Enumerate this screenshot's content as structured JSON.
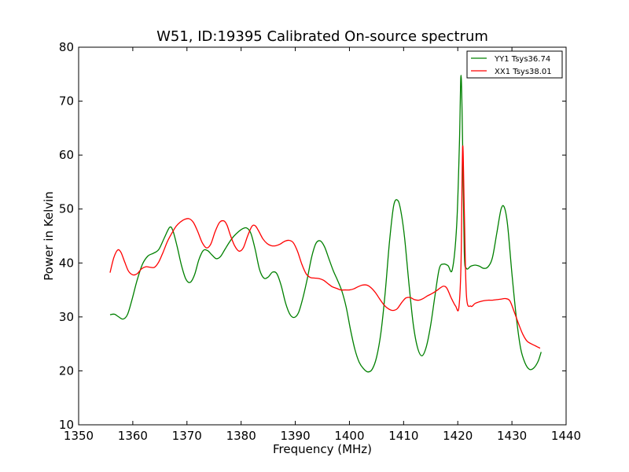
{
  "chart_data": {
    "type": "line",
    "title": "W51, ID:19395 Calibrated On-source spectrum",
    "xlabel": "Frequency (MHz)",
    "ylabel": "Power in Kelvin",
    "xlim": [
      1350,
      1440
    ],
    "ylim": [
      10,
      80
    ],
    "xticks": [
      1350,
      1360,
      1370,
      1380,
      1390,
      1400,
      1410,
      1420,
      1430,
      1440
    ],
    "yticks": [
      10,
      20,
      30,
      40,
      50,
      60,
      70,
      80
    ],
    "grid": false,
    "legend_position": "top-right",
    "series": [
      {
        "name": "YY1 Tsys36.74",
        "color": "#008000",
        "x": [
          1355.8,
          1356.6,
          1357.4,
          1358.2,
          1359.0,
          1359.8,
          1360.8,
          1361.8,
          1362.8,
          1363.8,
          1364.8,
          1365.8,
          1366.8,
          1367.4,
          1368.2,
          1369.0,
          1369.8,
          1370.6,
          1371.4,
          1372.2,
          1373.0,
          1373.8,
          1374.6,
          1375.4,
          1376.2,
          1377.0,
          1377.8,
          1378.6,
          1379.4,
          1380.2,
          1381.0,
          1381.8,
          1382.6,
          1383.4,
          1384.2,
          1385.0,
          1385.8,
          1386.6,
          1387.4,
          1388.2,
          1389.0,
          1389.8,
          1390.6,
          1391.4,
          1392.2,
          1393.0,
          1393.8,
          1394.6,
          1395.4,
          1396.2,
          1397.0,
          1397.8,
          1398.6,
          1399.4,
          1400.2,
          1401.0,
          1401.8,
          1402.6,
          1403.4,
          1404.2,
          1405.0,
          1405.8,
          1406.6,
          1407.4,
          1408.2,
          1409.0,
          1409.6,
          1410.2,
          1411.0,
          1411.8,
          1412.6,
          1413.4,
          1414.2,
          1415.0,
          1415.8,
          1416.6,
          1417.4,
          1418.2,
          1419.0,
          1419.8,
          1420.3,
          1420.6,
          1420.9,
          1421.2,
          1421.6,
          1422.4,
          1423.2,
          1424.0,
          1424.8,
          1425.6,
          1426.4,
          1427.2,
          1428.0,
          1428.6,
          1429.2,
          1430.0,
          1430.8,
          1431.6,
          1432.4,
          1433.2,
          1434.0,
          1434.8,
          1435.4
        ],
        "values": [
          30.4,
          30.5,
          30.0,
          29.6,
          30.4,
          33.0,
          36.8,
          39.8,
          41.3,
          41.8,
          42.5,
          44.6,
          46.6,
          46.0,
          43.0,
          39.5,
          37.0,
          36.4,
          37.8,
          40.6,
          42.3,
          42.3,
          41.5,
          40.8,
          41.2,
          42.5,
          43.8,
          44.9,
          45.7,
          46.3,
          46.5,
          45.5,
          42.5,
          38.8,
          37.2,
          37.4,
          38.3,
          38.0,
          35.8,
          32.6,
          30.5,
          29.9,
          30.8,
          33.5,
          37.0,
          41.0,
          43.6,
          44.1,
          43.0,
          40.8,
          38.6,
          36.8,
          34.8,
          31.8,
          27.6,
          24.0,
          21.6,
          20.4,
          19.8,
          20.3,
          22.5,
          27.0,
          34.5,
          44.0,
          50.8,
          51.5,
          49.0,
          44.5,
          36.0,
          28.5,
          24.2,
          22.8,
          24.5,
          28.5,
          34.0,
          39.0,
          39.8,
          39.5,
          38.8,
          47.0,
          62.0,
          74.8,
          62.0,
          42.0,
          39.0,
          39.4,
          39.6,
          39.4,
          39.0,
          39.3,
          41.0,
          45.5,
          50.0,
          50.3,
          47.0,
          38.0,
          30.0,
          24.2,
          21.5,
          20.3,
          20.5,
          21.7,
          23.5
        ]
      },
      {
        "name": "XX1 Tsys38.01",
        "color": "#ff0000",
        "x": [
          1355.8,
          1356.5,
          1357.2,
          1357.8,
          1358.5,
          1359.2,
          1360.0,
          1360.8,
          1361.6,
          1362.4,
          1363.2,
          1364.0,
          1364.8,
          1365.6,
          1366.4,
          1367.2,
          1368.0,
          1368.8,
          1369.6,
          1370.4,
          1371.2,
          1372.0,
          1372.8,
          1373.6,
          1374.4,
          1375.2,
          1376.0,
          1376.8,
          1377.4,
          1378.0,
          1378.8,
          1379.6,
          1380.4,
          1381.2,
          1382.0,
          1382.6,
          1383.2,
          1384.0,
          1384.8,
          1385.6,
          1386.4,
          1387.2,
          1388.0,
          1388.8,
          1389.6,
          1390.4,
          1391.2,
          1392.0,
          1392.8,
          1393.6,
          1394.4,
          1395.2,
          1396.0,
          1396.8,
          1397.6,
          1398.4,
          1399.2,
          1400.0,
          1400.8,
          1401.6,
          1402.4,
          1403.2,
          1404.0,
          1404.8,
          1405.6,
          1406.4,
          1407.2,
          1408.0,
          1408.8,
          1409.6,
          1410.4,
          1411.2,
          1412.0,
          1412.8,
          1413.6,
          1414.4,
          1415.2,
          1416.0,
          1416.8,
          1417.4,
          1418.0,
          1418.8,
          1419.6,
          1420.2,
          1420.6,
          1420.9,
          1421.2,
          1421.6,
          1422.4,
          1423.2,
          1424.0,
          1424.8,
          1425.6,
          1426.4,
          1427.2,
          1428.0,
          1428.8,
          1429.6,
          1430.4,
          1431.2,
          1432.0,
          1432.8,
          1433.6,
          1434.4,
          1435.2
        ],
        "values": [
          38.2,
          41.0,
          42.4,
          42.0,
          40.2,
          38.5,
          37.8,
          38.0,
          38.9,
          39.3,
          39.2,
          39.2,
          40.2,
          42.0,
          44.0,
          45.5,
          46.8,
          47.6,
          48.1,
          48.2,
          47.5,
          45.8,
          43.8,
          42.8,
          43.5,
          45.8,
          47.5,
          47.8,
          47.0,
          45.2,
          43.2,
          42.2,
          42.8,
          45.0,
          46.8,
          46.9,
          46.0,
          44.5,
          43.6,
          43.2,
          43.2,
          43.5,
          44.0,
          44.2,
          43.8,
          42.2,
          39.8,
          38.0,
          37.3,
          37.2,
          37.1,
          36.8,
          36.2,
          35.6,
          35.3,
          35.0,
          35.0,
          35.0,
          35.2,
          35.6,
          35.9,
          35.9,
          35.4,
          34.5,
          33.3,
          32.2,
          31.5,
          31.2,
          31.5,
          32.6,
          33.5,
          33.6,
          33.2,
          33.1,
          33.4,
          33.9,
          34.3,
          34.8,
          35.4,
          35.7,
          35.3,
          33.5,
          32.0,
          31.7,
          40.0,
          61.5,
          50.0,
          34.0,
          32.0,
          32.5,
          32.8,
          33.0,
          33.1,
          33.1,
          33.2,
          33.3,
          33.4,
          33.0,
          31.0,
          28.8,
          26.8,
          25.5,
          25.0,
          24.6,
          24.2
        ]
      }
    ]
  }
}
